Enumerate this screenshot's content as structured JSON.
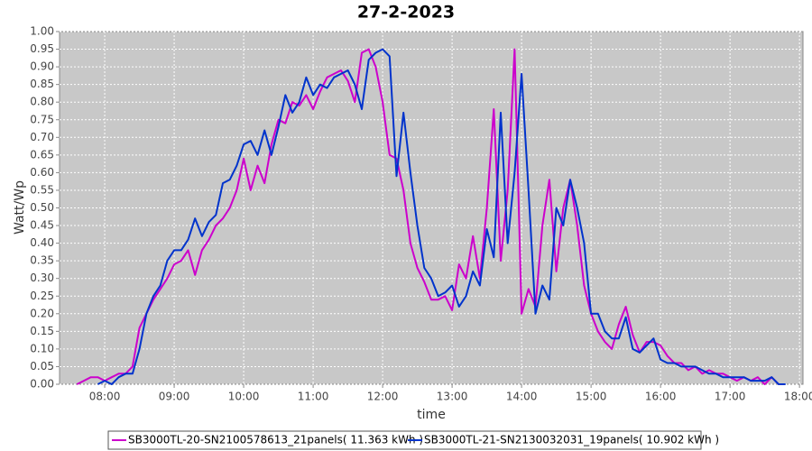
{
  "chart_data": {
    "type": "line",
    "title": "27-2-2023",
    "x_label": "time",
    "y_label": "Watt/Wp",
    "x": [
      7.6,
      7.7,
      7.8,
      7.9,
      8.0,
      8.1,
      8.2,
      8.3,
      8.4,
      8.5,
      8.6,
      8.7,
      8.8,
      8.9,
      9.0,
      9.1,
      9.2,
      9.3,
      9.4,
      9.5,
      9.6,
      9.7,
      9.8,
      9.9,
      10.0,
      10.1,
      10.2,
      10.3,
      10.4,
      10.5,
      10.6,
      10.7,
      10.8,
      10.9,
      11.0,
      11.1,
      11.2,
      11.3,
      11.4,
      11.5,
      11.6,
      11.7,
      11.8,
      11.9,
      12.0,
      12.1,
      12.2,
      12.3,
      12.4,
      12.5,
      12.6,
      12.7,
      12.8,
      12.9,
      13.0,
      13.1,
      13.2,
      13.3,
      13.4,
      13.5,
      13.6,
      13.7,
      13.8,
      13.9,
      14.0,
      14.1,
      14.2,
      14.3,
      14.4,
      14.5,
      14.6,
      14.7,
      14.8,
      14.9,
      15.0,
      15.1,
      15.2,
      15.3,
      15.4,
      15.5,
      15.6,
      15.7,
      15.8,
      15.9,
      16.0,
      16.1,
      16.2,
      16.3,
      16.4,
      16.5,
      16.6,
      16.7,
      16.8,
      16.9,
      17.0,
      17.1,
      17.2,
      17.3,
      17.4,
      17.5,
      17.6,
      17.7,
      17.8
    ],
    "series": [
      {
        "name": "SB3000TL-20-SN2100578613_21panels( 11.363 kWh )",
        "color": "#cc00cc",
        "values": [
          0,
          0.01,
          0.02,
          0.02,
          0.01,
          0.02,
          0.03,
          0.03,
          0.05,
          0.16,
          0.2,
          0.24,
          0.27,
          0.3,
          0.34,
          0.35,
          0.38,
          0.31,
          0.38,
          0.41,
          0.45,
          0.47,
          0.5,
          0.55,
          0.64,
          0.55,
          0.62,
          0.57,
          0.68,
          0.75,
          0.74,
          0.8,
          0.79,
          0.82,
          0.78,
          0.83,
          0.87,
          0.88,
          0.89,
          0.86,
          0.8,
          0.94,
          0.95,
          0.9,
          0.8,
          0.65,
          0.64,
          0.55,
          0.4,
          0.33,
          0.29,
          0.24,
          0.24,
          0.25,
          0.21,
          0.34,
          0.3,
          0.42,
          0.3,
          0.5,
          0.78,
          0.35,
          0.55,
          0.95,
          0.2,
          0.27,
          0.22,
          0.45,
          0.58,
          0.32,
          0.5,
          0.58,
          0.45,
          0.28,
          0.2,
          0.15,
          0.12,
          0.1,
          0.17,
          0.22,
          0.14,
          0.09,
          0.12,
          0.12,
          0.11,
          0.08,
          0.06,
          0.06,
          0.04,
          0.05,
          0.03,
          0.04,
          0.03,
          0.03,
          0.02,
          0.01,
          0.02,
          0.01,
          0.02,
          0,
          0.02,
          0,
          null
        ]
      },
      {
        "name": "SB3000TL-21-SN2130032031_19panels( 10.902 kWh )",
        "color": "#0033cc",
        "values": [
          null,
          null,
          null,
          0,
          0.01,
          0,
          0.02,
          0.03,
          0.03,
          0.1,
          0.2,
          0.25,
          0.28,
          0.35,
          0.38,
          0.38,
          0.41,
          0.47,
          0.42,
          0.46,
          0.48,
          0.57,
          0.58,
          0.62,
          0.68,
          0.69,
          0.65,
          0.72,
          0.65,
          0.73,
          0.82,
          0.77,
          0.8,
          0.87,
          0.82,
          0.85,
          0.84,
          0.87,
          0.88,
          0.89,
          0.85,
          0.78,
          0.92,
          0.94,
          0.95,
          0.93,
          0.59,
          0.77,
          0.6,
          0.45,
          0.33,
          0.3,
          0.25,
          0.26,
          0.28,
          0.22,
          0.25,
          0.32,
          0.28,
          0.44,
          0.36,
          0.77,
          0.4,
          0.6,
          0.88,
          0.55,
          0.2,
          0.28,
          0.24,
          0.5,
          0.45,
          0.58,
          0.5,
          0.4,
          0.2,
          0.2,
          0.15,
          0.13,
          0.13,
          0.19,
          0.1,
          0.09,
          0.11,
          0.13,
          0.07,
          0.06,
          0.06,
          0.05,
          0.05,
          0.05,
          0.04,
          0.03,
          0.03,
          0.02,
          0.02,
          0.02,
          0.02,
          0.01,
          0.01,
          0.01,
          0.02,
          0,
          0
        ]
      }
    ],
    "xlim": [
      7.35,
      18.05
    ],
    "xticks": [
      {
        "value": 8,
        "label": "08:00"
      },
      {
        "value": 9,
        "label": "09:00"
      },
      {
        "value": 10,
        "label": "10:00"
      },
      {
        "value": 11,
        "label": "11:00"
      },
      {
        "value": 12,
        "label": "12:00"
      },
      {
        "value": 13,
        "label": "13:00"
      },
      {
        "value": 14,
        "label": "14:00"
      },
      {
        "value": 15,
        "label": "15:00"
      },
      {
        "value": 16,
        "label": "16:00"
      },
      {
        "value": 17,
        "label": "17:00"
      },
      {
        "value": 18,
        "label": "18:00"
      }
    ],
    "ylim": [
      0,
      1
    ],
    "yticks": [
      {
        "value": 0,
        "label": "0.00"
      },
      {
        "value": 0.05,
        "label": "0.05"
      },
      {
        "value": 0.1,
        "label": "0.10"
      },
      {
        "value": 0.15,
        "label": "0.15"
      },
      {
        "value": 0.2,
        "label": "0.20"
      },
      {
        "value": 0.25,
        "label": "0.25"
      },
      {
        "value": 0.3,
        "label": "0.30"
      },
      {
        "value": 0.35,
        "label": "0.35"
      },
      {
        "value": 0.4,
        "label": "0.40"
      },
      {
        "value": 0.45,
        "label": "0.45"
      },
      {
        "value": 0.5,
        "label": "0.50"
      },
      {
        "value": 0.55,
        "label": "0.55"
      },
      {
        "value": 0.6,
        "label": "0.60"
      },
      {
        "value": 0.65,
        "label": "0.65"
      },
      {
        "value": 0.7,
        "label": "0.70"
      },
      {
        "value": 0.75,
        "label": "0.75"
      },
      {
        "value": 0.8,
        "label": "0.80"
      },
      {
        "value": 0.85,
        "label": "0.85"
      },
      {
        "value": 0.9,
        "label": "0.90"
      },
      {
        "value": 0.95,
        "label": "0.95"
      },
      {
        "value": 1,
        "label": "1.00"
      }
    ],
    "grid": true,
    "legend": "bottom"
  }
}
